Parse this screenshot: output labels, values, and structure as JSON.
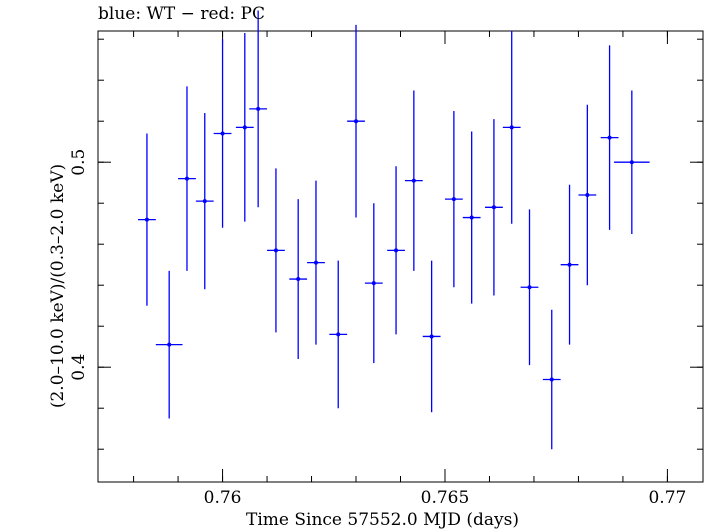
{
  "chart_data": {
    "type": "scatter",
    "title": "blue: WT − red: PC",
    "xlabel": "Time Since 57552.0 MJD (days)",
    "ylabel": "(2.0–10.0 keV)/(0.3–2.0 keV)",
    "xlim": [
      0.7572,
      0.7708
    ],
    "ylim": [
      0.344,
      0.564
    ],
    "xticks": [
      0.76,
      0.765,
      0.77
    ],
    "xtick_labels": [
      "0.76",
      "0.765",
      "0.77"
    ],
    "yticks": [
      0.4,
      0.5
    ],
    "ytick_labels": [
      "0.4",
      "0.5"
    ],
    "grid": false,
    "series": [
      {
        "color": "#0000ff",
        "x": [
          0.7583,
          0.7588,
          0.7592,
          0.7596,
          0.76,
          0.7605,
          0.7608,
          0.7612,
          0.7617,
          0.7621,
          0.7626,
          0.763,
          0.7634,
          0.7639,
          0.7643,
          0.7647,
          0.7652,
          0.7656,
          0.7661,
          0.7665,
          0.7669,
          0.7674,
          0.7678,
          0.7682,
          0.7687,
          0.7692
        ],
        "y": [
          0.472,
          0.411,
          0.492,
          0.481,
          0.514,
          0.517,
          0.526,
          0.457,
          0.443,
          0.451,
          0.416,
          0.52,
          0.441,
          0.457,
          0.491,
          0.415,
          0.482,
          0.473,
          0.478,
          0.517,
          0.439,
          0.394,
          0.45,
          0.484,
          0.512,
          0.5
        ],
        "xerr": [
          0.0002,
          0.0003,
          0.0002,
          0.0002,
          0.0002,
          0.0002,
          0.0002,
          0.0002,
          0.0002,
          0.0002,
          0.0002,
          0.0002,
          0.0002,
          0.0002,
          0.0002,
          0.0002,
          0.0002,
          0.0002,
          0.0002,
          0.0002,
          0.0002,
          0.0002,
          0.0002,
          0.0002,
          0.0002,
          0.0004
        ],
        "yerr": [
          0.042,
          0.036,
          0.045,
          0.043,
          0.046,
          0.046,
          0.048,
          0.04,
          0.039,
          0.04,
          0.036,
          0.047,
          0.039,
          0.041,
          0.044,
          0.037,
          0.043,
          0.042,
          0.043,
          0.047,
          0.038,
          0.034,
          0.039,
          0.044,
          0.045,
          0.035
        ]
      }
    ]
  }
}
